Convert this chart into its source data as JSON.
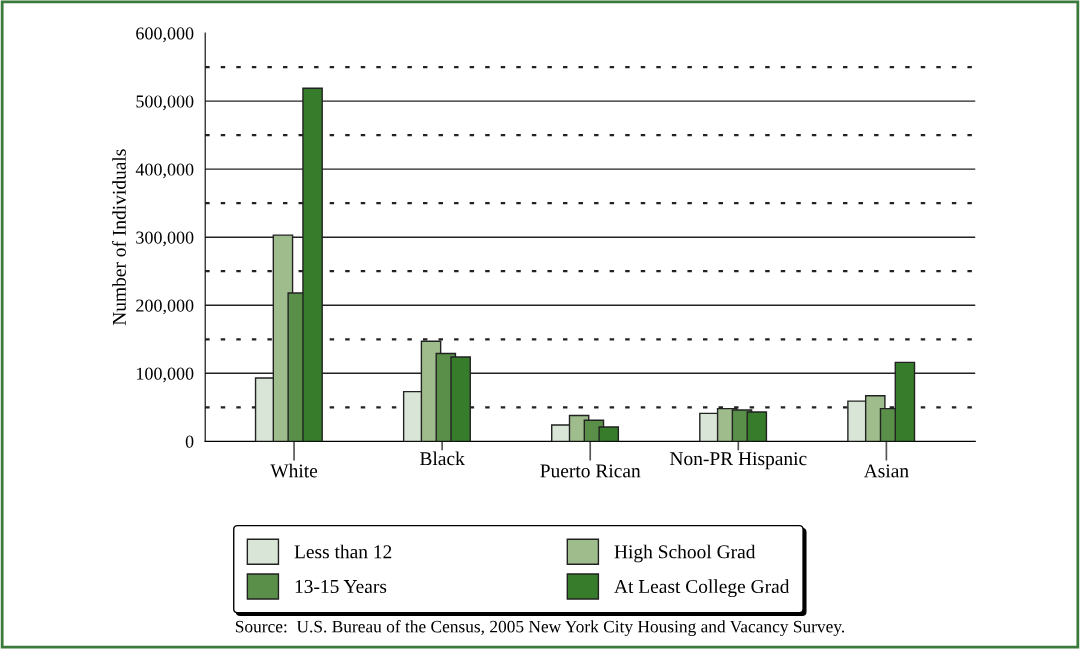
{
  "chart_data": {
    "type": "bar",
    "ylabel": "Number of Individuals",
    "categories": [
      "White",
      "Black",
      "Puerto Rican",
      "Non-PR Hispanic",
      "Asian"
    ],
    "series": [
      {
        "name": "Less than 12",
        "color": "#d9e5d6",
        "values": [
          93000,
          73000,
          24000,
          41000,
          59000
        ]
      },
      {
        "name": "High School Grad",
        "color": "#9fbd8c",
        "values": [
          303000,
          147000,
          38000,
          48000,
          67000
        ]
      },
      {
        "name": "13-15 Years",
        "color": "#5a8f4a",
        "values": [
          218000,
          129000,
          31000,
          46000,
          48000
        ]
      },
      {
        "name": "At Least College Grad",
        "color": "#367c2b",
        "values": [
          519000,
          124000,
          21000,
          43000,
          116000
        ]
      }
    ],
    "ylim": [
      0,
      600000
    ],
    "yticks": [
      {
        "value": 0,
        "label": "0"
      },
      {
        "value": 50000,
        "label": null
      },
      {
        "value": 100000,
        "label": "100,000"
      },
      {
        "value": 150000,
        "label": null
      },
      {
        "value": 200000,
        "label": "200,000"
      },
      {
        "value": 250000,
        "label": null
      },
      {
        "value": 300000,
        "label": "300,000"
      },
      {
        "value": 350000,
        "label": null
      },
      {
        "value": 400000,
        "label": "400,000"
      },
      {
        "value": 450000,
        "label": null
      },
      {
        "value": 500000,
        "label": "500,000"
      },
      {
        "value": 550000,
        "label": null
      },
      {
        "value": 600000,
        "label": "600,000"
      }
    ],
    "grid": "y",
    "legend": "bottom",
    "annotations": [
      "Source:  U.S. Bureau of the Census, 2005 New York City Housing and Vacancy Survey."
    ]
  }
}
